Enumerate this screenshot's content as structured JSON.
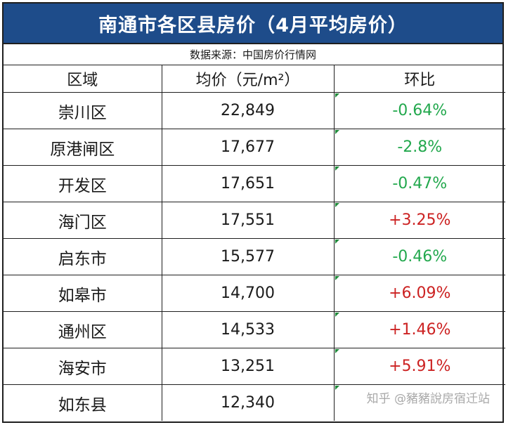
{
  "title": "南通市各区县房价（4月平均房价）",
  "source": "数据来源：中国房价行情网",
  "columns": [
    "区域",
    "均价（元/m²）",
    "环比"
  ],
  "rows": [
    {
      "region": "崇川区",
      "price": "22,849",
      "change": "-0.64%",
      "direction": "down"
    },
    {
      "region": "原港闸区",
      "price": "17,677",
      "change": "-2.8%",
      "direction": "down"
    },
    {
      "region": "开发区",
      "price": "17,651",
      "change": "-0.47%",
      "direction": "down"
    },
    {
      "region": "海门区",
      "price": "17,551",
      "change": "+3.25%",
      "direction": "up"
    },
    {
      "region": "启东市",
      "price": "15,577",
      "change": "-0.46%",
      "direction": "down"
    },
    {
      "region": "如皋市",
      "price": "14,700",
      "change": "+6.09%",
      "direction": "up"
    },
    {
      "region": "通州区",
      "price": "14,533",
      "change": "+1.46%",
      "direction": "up"
    },
    {
      "region": "海安市",
      "price": "13,251",
      "change": "+5.91%",
      "direction": "up"
    },
    {
      "region": "如东县",
      "price": "12,340",
      "change": "",
      "direction": "none"
    }
  ],
  "watermark": "知乎 @豬豬說房宿迁站",
  "colors": {
    "title_bg": "#1e4c8a",
    "negative": "#22a84d",
    "positive": "#cc2222"
  }
}
